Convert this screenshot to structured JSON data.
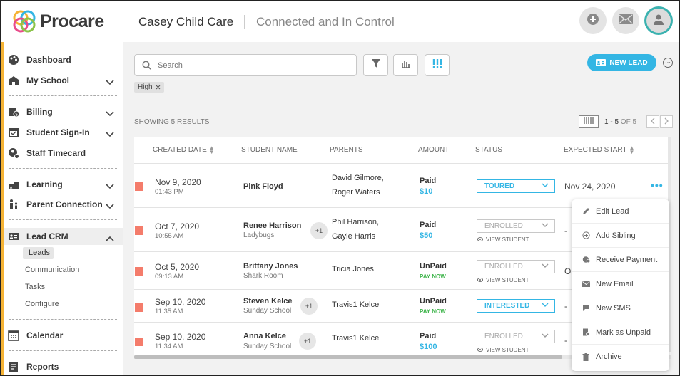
{
  "brand": {
    "name": "Procare"
  },
  "header": {
    "center_name": "Casey Child Care",
    "tagline": "Connected and In Control",
    "add_icon": "plus-icon",
    "mail_icon": "mail-icon",
    "avatar_icon": "user-icon"
  },
  "sidebar": {
    "items": [
      {
        "label": "Dashboard",
        "icon": "palette-icon"
      },
      {
        "label": "My School",
        "icon": "school-icon"
      },
      {
        "label": "Billing",
        "icon": "billing-icon"
      },
      {
        "label": "Student Sign-In",
        "icon": "calendar-check-icon"
      },
      {
        "label": "Staff Timecard",
        "icon": "staff-icon"
      },
      {
        "label": "Learning",
        "icon": "learning-icon"
      },
      {
        "label": "Parent Connection",
        "icon": "family-icon"
      },
      {
        "label": "Lead CRM",
        "icon": "id-card-icon"
      },
      {
        "label": "Calendar",
        "icon": "calendar-icon"
      },
      {
        "label": "Reports",
        "icon": "reports-icon"
      }
    ],
    "sub_items": [
      "Leads",
      "Communication",
      "Tasks",
      "Configure"
    ]
  },
  "toolbar": {
    "search_placeholder": "Search",
    "new_lead_label": "NEW LEAD",
    "filter_chip": "High",
    "more_label": "···"
  },
  "results": {
    "showing_text": "SHOWING 5 RESULTS",
    "pager_range": "1 - 5",
    "pager_of": "OF 5"
  },
  "table": {
    "columns": [
      "CREATED DATE",
      "STUDENT NAME",
      "PARENTS",
      "AMOUNT",
      "STATUS",
      "EXPECTED START"
    ],
    "rows": [
      {
        "date": "Nov 9, 2020",
        "time": "01:43 PM",
        "student": "Pink Floyd",
        "room": "",
        "plus": "",
        "parents": [
          "David Gilmore,",
          "Roger Waters"
        ],
        "paid": "Paid",
        "amount": "$10",
        "paynow": "",
        "status": "TOURED",
        "view_student": "",
        "expected": "Nov 24, 2020"
      },
      {
        "date": "Oct 7, 2020",
        "time": "10:55 AM",
        "student": "Renee Harrison",
        "room": "Ladybugs",
        "plus": "+1",
        "parents": [
          "Phil Harrison,",
          "Gayle Harris"
        ],
        "paid": "Paid",
        "amount": "$50",
        "paynow": "",
        "status": "ENROLLED",
        "view_student": "VIEW STUDENT",
        "expected": "-"
      },
      {
        "date": "Oct 5, 2020",
        "time": "09:13 AM",
        "student": "Brittany Jones",
        "room": "Shark Room",
        "plus": "",
        "parents": [
          "Tricia Jones"
        ],
        "paid": "UnPaid",
        "amount": "",
        "paynow": "PAY NOW",
        "status": "ENROLLED",
        "view_student": "VIEW STUDENT",
        "expected": "O"
      },
      {
        "date": "Sep 10, 2020",
        "time": "11:35 AM",
        "student": "Steven Kelce",
        "room": "Sunday School",
        "plus": "+1",
        "parents": [
          "Travis1 Kelce"
        ],
        "paid": "UnPaid",
        "amount": "",
        "paynow": "PAY NOW",
        "status": "INTERESTED",
        "view_student": "",
        "expected": "-"
      },
      {
        "date": "Sep 10, 2020",
        "time": "11:34 AM",
        "student": "Anna Kelce",
        "room": "Sunday School",
        "plus": "+1",
        "parents": [
          "Travis1 Kelce"
        ],
        "paid": "Paid",
        "amount": "$100",
        "paynow": "",
        "status": "ENROLLED",
        "view_student": "VIEW STUDENT",
        "expected": "-"
      }
    ]
  },
  "context_menu": {
    "items": [
      {
        "label": "Edit Lead",
        "icon": "pencil-icon"
      },
      {
        "label": "Add Sibling",
        "icon": "plus-circle-icon"
      },
      {
        "label": "Receive Payment",
        "icon": "payment-icon"
      },
      {
        "label": "New Email",
        "icon": "mail-icon"
      },
      {
        "label": "New SMS",
        "icon": "chat-icon"
      },
      {
        "label": "Mark as Unpaid",
        "icon": "document-icon"
      },
      {
        "label": "Archive",
        "icon": "trash-icon"
      }
    ]
  },
  "colors": {
    "accent": "#34b6e4",
    "sidebar_accent": "#f5b335",
    "flag": "#f47c6b",
    "pay_now": "#3db44a"
  }
}
